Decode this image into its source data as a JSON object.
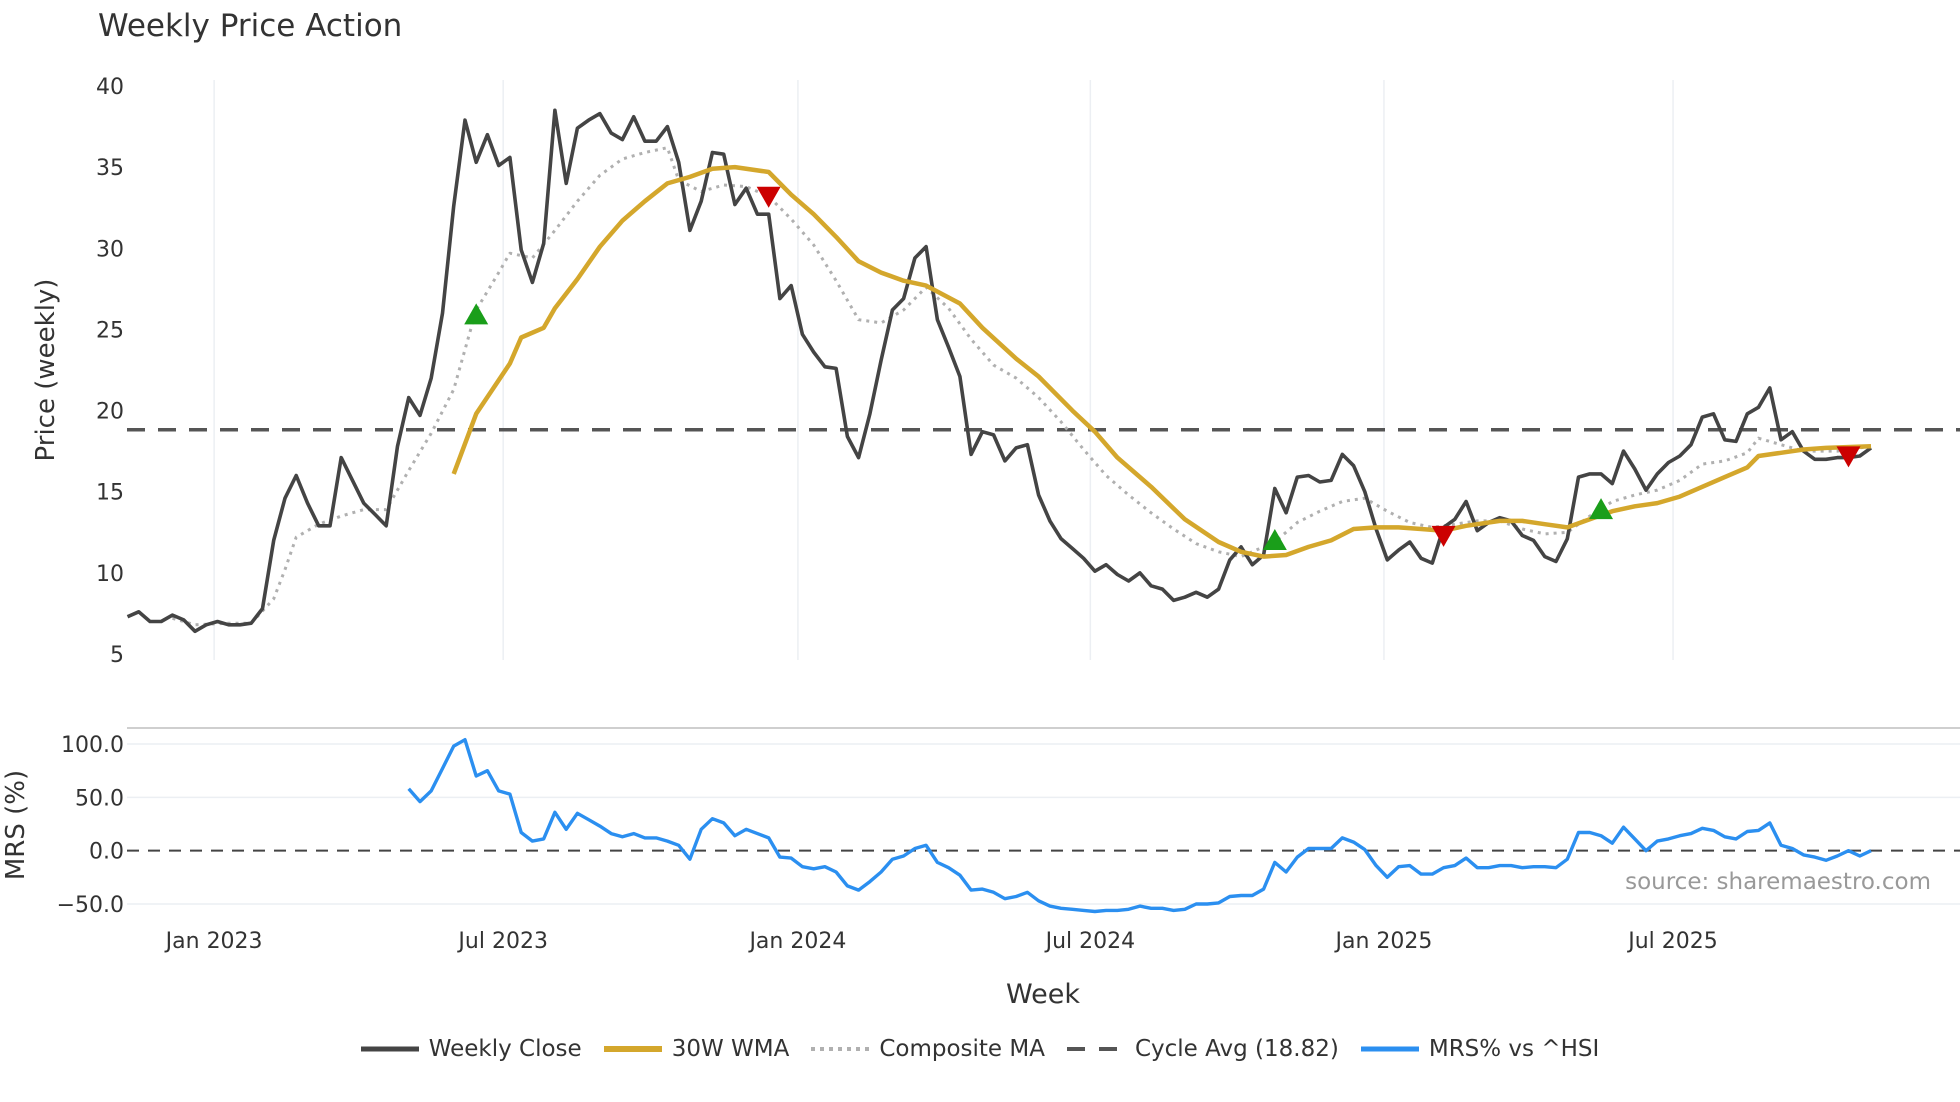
{
  "chart_data": {
    "type": "line",
    "title": "Weekly Price Action",
    "xlabel": "Week",
    "x_unit": "week index",
    "x_range": [
      0,
      155
    ],
    "x_ticks": [
      {
        "week": 7.7,
        "label": "Jan 2023"
      },
      {
        "week": 33.4,
        "label": "Jul 2023"
      },
      {
        "week": 59.6,
        "label": "Jan 2024"
      },
      {
        "week": 85.6,
        "label": "Jul 2024"
      },
      {
        "week": 111.7,
        "label": "Jan 2025"
      },
      {
        "week": 137.4,
        "label": "Jul 2025"
      }
    ],
    "price_panel": {
      "ylabel": "Price (weekly)",
      "ylim": [
        5,
        40
      ],
      "y_ticks": [
        "40",
        "35",
        "30",
        "25",
        "20",
        "15",
        "10",
        "5"
      ],
      "y_tick_values": [
        40,
        35,
        30,
        25,
        20,
        15,
        10,
        5
      ],
      "weekly_close": {
        "name": "Weekly Close",
        "color": "#444444",
        "start_week": 0,
        "values": [
          7.3,
          7.6,
          7,
          7,
          7.4,
          7.1,
          6.4,
          6.8,
          7,
          6.8,
          6.8,
          6.9,
          7.8,
          12,
          14.6,
          16,
          14.3,
          12.9,
          12.9,
          17.1,
          15.7,
          14.3,
          13.6,
          12.9,
          17.8,
          20.8,
          19.7,
          22,
          26,
          32.6,
          37.9,
          35.3,
          37,
          35.1,
          35.6,
          29.9,
          27.9,
          30.3,
          38.5,
          34,
          37.4,
          37.9,
          38.3,
          37.1,
          36.7,
          38.1,
          36.6,
          36.6,
          37.5,
          35.3,
          31.1,
          32.9,
          35.9,
          35.8,
          32.7,
          33.7,
          32.1,
          32.1,
          26.9,
          27.7,
          24.7,
          23.6,
          22.7,
          22.6,
          18.4,
          17.1,
          19.8,
          23.1,
          26.2,
          26.9,
          29.4,
          30.1,
          25.6,
          23.9,
          22.1,
          17.3,
          18.7,
          18.5,
          16.9,
          17.7,
          17.9,
          14.8,
          13.2,
          12.1,
          11.5,
          10.9,
          10.1,
          10.5,
          9.9,
          9.5,
          10,
          9.2,
          9,
          8.3,
          8.5,
          8.8,
          8.5,
          9,
          10.8,
          11.6,
          10.5,
          11.1,
          15.2,
          13.7,
          15.9,
          16,
          15.6,
          15.7,
          17.3,
          16.6,
          15,
          12.7,
          10.8,
          11.4,
          11.9,
          10.9,
          10.6,
          12.8,
          13.3,
          14.4,
          12.6,
          13.1,
          13.4,
          13.2,
          12.3,
          12,
          11,
          10.7,
          12.1,
          15.9,
          16.1,
          16.1,
          15.5,
          17.5,
          16.4,
          15.1,
          16.1,
          16.8,
          17.2,
          17.9,
          19.6,
          19.8,
          18.2,
          18.1,
          19.8,
          20.2,
          21.4,
          18.2,
          18.7,
          17.5,
          17,
          17,
          17.1,
          17.1,
          17.2,
          17.7
        ]
      },
      "wma_30w": {
        "name": "30W WMA",
        "color": "#D4A72C",
        "points": [
          [
            29,
            16.1
          ],
          [
            31,
            19.8
          ],
          [
            34,
            22.9
          ],
          [
            35,
            24.5
          ],
          [
            37,
            25.1
          ],
          [
            38,
            26.3
          ],
          [
            40,
            28.1
          ],
          [
            42,
            30.1
          ],
          [
            44,
            31.7
          ],
          [
            46,
            32.9
          ],
          [
            48,
            34
          ],
          [
            50,
            34.4
          ],
          [
            52,
            34.9
          ],
          [
            54,
            35
          ],
          [
            57,
            34.7
          ],
          [
            59,
            33.3
          ],
          [
            61,
            32.1
          ],
          [
            63,
            30.7
          ],
          [
            65,
            29.2
          ],
          [
            67,
            28.5
          ],
          [
            69,
            28
          ],
          [
            71,
            27.7
          ],
          [
            74,
            26.6
          ],
          [
            76,
            25.1
          ],
          [
            79,
            23.2
          ],
          [
            81,
            22.1
          ],
          [
            84,
            20
          ],
          [
            86,
            18.7
          ],
          [
            88,
            17.1
          ],
          [
            91,
            15.3
          ],
          [
            94,
            13.3
          ],
          [
            97,
            11.9
          ],
          [
            99,
            11.3
          ],
          [
            101,
            11
          ],
          [
            103,
            11.1
          ],
          [
            105,
            11.6
          ],
          [
            107,
            12
          ],
          [
            109,
            12.7
          ],
          [
            111,
            12.8
          ],
          [
            113,
            12.8
          ],
          [
            115,
            12.7
          ],
          [
            117,
            12.6
          ],
          [
            119,
            12.9
          ],
          [
            122,
            13.2
          ],
          [
            124,
            13.2
          ],
          [
            126,
            13
          ],
          [
            128,
            12.8
          ],
          [
            130,
            13.3
          ],
          [
            132,
            13.8
          ],
          [
            134,
            14.1
          ],
          [
            136,
            14.3
          ],
          [
            138,
            14.7
          ],
          [
            140,
            15.3
          ],
          [
            142,
            15.9
          ],
          [
            144,
            16.5
          ],
          [
            145,
            17.2
          ],
          [
            147,
            17.4
          ],
          [
            149,
            17.6
          ],
          [
            151,
            17.7
          ],
          [
            155,
            17.8
          ]
        ]
      },
      "composite_ma": {
        "name": "Composite MA",
        "color": "#b0b0b0",
        "points": [
          [
            4,
            7.2
          ],
          [
            6,
            6.8
          ],
          [
            9,
            6.9
          ],
          [
            11,
            6.9
          ],
          [
            13,
            8.4
          ],
          [
            14,
            10.2
          ],
          [
            15,
            12.2
          ],
          [
            17,
            13
          ],
          [
            19,
            13.5
          ],
          [
            21,
            13.9
          ],
          [
            23,
            13.9
          ],
          [
            25,
            16.3
          ],
          [
            27,
            18.6
          ],
          [
            29,
            21.3
          ],
          [
            31,
            26.2
          ],
          [
            33,
            28.5
          ],
          [
            34,
            29.7
          ],
          [
            36,
            29.4
          ],
          [
            38,
            31.1
          ],
          [
            40,
            32.9
          ],
          [
            42,
            34.5
          ],
          [
            44,
            35.5
          ],
          [
            46,
            35.9
          ],
          [
            48,
            36.2
          ],
          [
            49,
            34.2
          ],
          [
            51,
            33.5
          ],
          [
            53,
            33.9
          ],
          [
            55,
            33.8
          ],
          [
            57,
            33.2
          ],
          [
            59,
            31.8
          ],
          [
            61,
            30.2
          ],
          [
            63,
            28
          ],
          [
            65,
            25.6
          ],
          [
            67,
            25.4
          ],
          [
            69,
            26.2
          ],
          [
            71,
            27.6
          ],
          [
            73,
            26.3
          ],
          [
            75,
            24.4
          ],
          [
            77,
            22.8
          ],
          [
            79,
            22
          ],
          [
            81,
            20.8
          ],
          [
            83,
            19.3
          ],
          [
            85,
            17.6
          ],
          [
            87,
            16
          ],
          [
            89,
            14.8
          ],
          [
            91,
            13.7
          ],
          [
            93,
            12.7
          ],
          [
            95,
            11.8
          ],
          [
            97,
            11.3
          ],
          [
            99,
            11
          ],
          [
            102,
            11.9
          ],
          [
            104,
            13.1
          ],
          [
            106,
            13.8
          ],
          [
            108,
            14.4
          ],
          [
            110,
            14.6
          ],
          [
            112,
            13.8
          ],
          [
            114,
            13.1
          ],
          [
            116,
            12.8
          ],
          [
            118,
            13
          ],
          [
            120,
            13.2
          ],
          [
            122,
            13.2
          ],
          [
            124,
            12.7
          ],
          [
            126,
            12.4
          ],
          [
            128,
            12.5
          ],
          [
            130,
            13.5
          ],
          [
            132,
            14.4
          ],
          [
            134,
            14.8
          ],
          [
            136,
            15.1
          ],
          [
            138,
            15.7
          ],
          [
            140,
            16.7
          ],
          [
            142,
            16.9
          ],
          [
            144,
            17.4
          ],
          [
            145,
            18.3
          ],
          [
            147,
            17.9
          ],
          [
            149,
            17.5
          ],
          [
            152,
            17.5
          ],
          [
            155,
            17.8
          ]
        ]
      },
      "cycle_avg": {
        "name": "Cycle Avg (18.82)",
        "value": 18.82,
        "color": "#555555"
      },
      "signals": [
        {
          "type": "buy",
          "week": 31,
          "value": 25.9
        },
        {
          "type": "sell",
          "week": 57,
          "value": 33.2
        },
        {
          "type": "buy",
          "week": 102,
          "value": 12.0
        },
        {
          "type": "sell",
          "week": 117,
          "value": 12.3
        },
        {
          "type": "buy",
          "week": 131,
          "value": 13.9
        },
        {
          "type": "sell",
          "week": 153,
          "value": 17.2
        }
      ],
      "buy_color": "#1a9e1a",
      "sell_color": "#cc0000"
    },
    "mrs_panel": {
      "ylabel": "MRS (%)",
      "ylim": [
        -50,
        100
      ],
      "y_ticks": [
        "100.0",
        "50.0",
        "0.0",
        "−50.0"
      ],
      "y_tick_values": [
        100,
        50,
        0,
        -50
      ],
      "mrs": {
        "name": "MRS% vs ^HSI",
        "color": "#2b8ff0",
        "start_week": 25,
        "values": [
          58,
          46,
          56,
          77,
          98,
          104,
          70,
          75,
          56,
          53,
          17,
          9,
          11,
          36,
          20,
          35,
          29,
          23,
          16,
          13,
          16,
          12,
          12,
          9,
          5,
          -8,
          20,
          30,
          26,
          14,
          20,
          16,
          12,
          -6,
          -7,
          -15,
          -17,
          -15,
          -20,
          -33,
          -37,
          -29,
          -20,
          -8,
          -5,
          2,
          5,
          -11,
          -16,
          -23,
          -37,
          -36,
          -39,
          -45,
          -43,
          -39,
          -47,
          -52,
          -54,
          -55,
          -56,
          -57,
          -56,
          -56,
          -55,
          -52,
          -54,
          -54,
          -56,
          -55,
          -50,
          -50,
          -49,
          -43,
          -42,
          -42,
          -36,
          -11,
          -20,
          -6,
          2,
          2,
          2,
          12,
          8,
          1,
          -14,
          -25,
          -15,
          -14,
          -22,
          -22,
          -16,
          -14,
          -7,
          -16,
          -16,
          -14,
          -14,
          -16,
          -15,
          -15,
          -16,
          -8,
          17,
          17,
          14,
          7,
          22,
          11,
          0,
          9,
          11,
          14,
          16,
          21,
          19,
          13,
          11,
          18,
          19,
          26,
          5,
          2,
          -4,
          -6,
          -9,
          -5,
          0,
          -5,
          0
        ]
      },
      "source_note": "source: sharemaestro.com"
    },
    "legend": {
      "placement": "bottom-center",
      "items": [
        "Weekly Close",
        "30W WMA",
        "Composite MA",
        "Cycle Avg (18.82)",
        "MRS% vs ^HSI"
      ]
    }
  }
}
